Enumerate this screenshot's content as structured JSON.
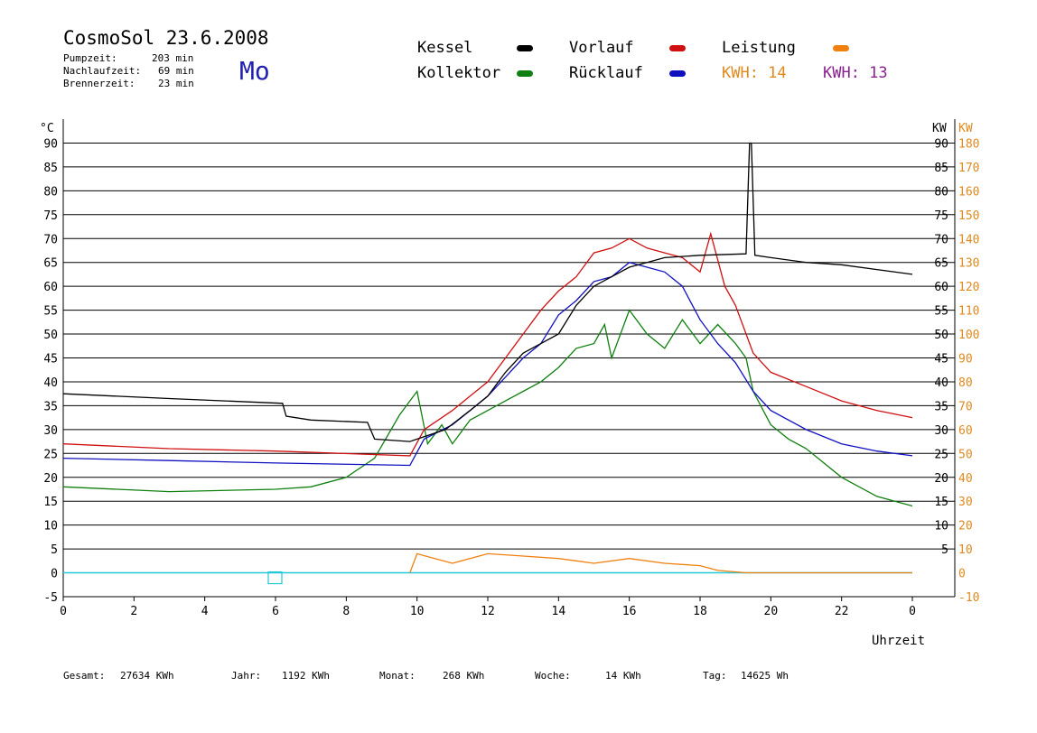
{
  "header": {
    "title": "CosmoSol 23.6.2008",
    "weekday": "Mo",
    "stats": [
      {
        "label": "Pumpzeit:",
        "value": "203 min"
      },
      {
        "label": "Nachlaufzeit:",
        "value": "69 min"
      },
      {
        "label": "Brennerzeit:",
        "value": "23 min"
      }
    ]
  },
  "legend": {
    "kessel": "Kessel",
    "vorlauf": "Vorlauf",
    "leistung": "Leistung",
    "kollektor": "Kollektor",
    "ruecklauf": "Rücklauf",
    "kwh1": "KWH: 14",
    "kwh2": "KWH: 13"
  },
  "colors": {
    "kessel": "#000000",
    "vorlauf": "#d01010",
    "ruecklauf": "#1010c0",
    "kollektor": "#108010",
    "leistung": "#f08010",
    "kwh_purple": "#8a1f8f",
    "baseline": "#20c8d8",
    "right_axis": "#e08a20"
  },
  "footer": {
    "gesamt_label": "Gesamt:",
    "gesamt_value": "27634 KWh",
    "jahr_label": "Jahr:",
    "jahr_value": "1192 KWh",
    "monat_label": "Monat:",
    "monat_value": "268 KWh",
    "woche_label": "Woche:",
    "woche_value": "14 KWh",
    "tag_label": "Tag:",
    "tag_value": "14625 Wh"
  },
  "chart_data": {
    "type": "line",
    "xlabel": "Uhrzeit",
    "ylabel_left": "°C",
    "ylabel_right": "KW",
    "xlim": [
      0,
      24
    ],
    "ylim": [
      -5,
      95
    ],
    "ylim_right": [
      -10,
      190
    ],
    "grid": true,
    "x_ticks": [
      0,
      2,
      4,
      6,
      8,
      10,
      12,
      14,
      16,
      18,
      20,
      22
    ],
    "x_tick_labels": [
      "0",
      "2",
      "4",
      "6",
      "8",
      "10",
      "12",
      "14",
      "16",
      "18",
      "20",
      "22",
      "0"
    ],
    "y_ticks_left": [
      -5,
      0,
      5,
      10,
      15,
      20,
      25,
      30,
      35,
      40,
      45,
      50,
      55,
      60,
      65,
      70,
      75,
      80,
      85,
      90
    ],
    "y_ticks_right_celsius": [
      5,
      10,
      15,
      20,
      25,
      30,
      35,
      40,
      45,
      50,
      55,
      60,
      65,
      70,
      75,
      80,
      85,
      90
    ],
    "y_ticks_right_kw": [
      -10,
      0,
      10,
      20,
      30,
      40,
      50,
      60,
      70,
      80,
      90,
      100,
      110,
      120,
      130,
      140,
      150,
      160,
      170,
      180
    ],
    "series": [
      {
        "name": "Kessel",
        "points": [
          [
            0,
            37.5
          ],
          [
            3,
            36.5
          ],
          [
            6.2,
            35.5
          ],
          [
            6.3,
            32.8
          ],
          [
            7,
            32
          ],
          [
            8.6,
            31.5
          ],
          [
            8.8,
            28
          ],
          [
            9.8,
            27.5
          ],
          [
            10.2,
            28.5
          ],
          [
            10.8,
            30
          ],
          [
            11.5,
            34
          ],
          [
            12,
            37
          ],
          [
            12.5,
            42
          ],
          [
            13,
            46
          ],
          [
            14,
            50
          ],
          [
            14.5,
            56
          ],
          [
            15,
            60
          ],
          [
            15.5,
            62
          ],
          [
            16,
            64
          ],
          [
            16.5,
            65
          ],
          [
            17,
            66
          ],
          [
            18,
            66.5
          ],
          [
            19.3,
            66.8
          ],
          [
            19.4,
            90
          ],
          [
            19.45,
            90
          ],
          [
            19.55,
            66.5
          ],
          [
            20,
            66
          ],
          [
            21,
            65
          ],
          [
            22,
            64.5
          ],
          [
            23,
            63.5
          ],
          [
            24,
            62.5
          ]
        ]
      },
      {
        "name": "Vorlauf",
        "points": [
          [
            0,
            27
          ],
          [
            3,
            26
          ],
          [
            6,
            25.5
          ],
          [
            9.8,
            24.5
          ],
          [
            10.2,
            30
          ],
          [
            11,
            34
          ],
          [
            11.5,
            37
          ],
          [
            12,
            40
          ],
          [
            12.5,
            45
          ],
          [
            13,
            50
          ],
          [
            13.5,
            55
          ],
          [
            14,
            59
          ],
          [
            14.5,
            62
          ],
          [
            15,
            67
          ],
          [
            15.5,
            68
          ],
          [
            16,
            70
          ],
          [
            16.5,
            68
          ],
          [
            17,
            67
          ],
          [
            17.5,
            66
          ],
          [
            18,
            63
          ],
          [
            18.3,
            71
          ],
          [
            18.7,
            60
          ],
          [
            19,
            56
          ],
          [
            19.5,
            46
          ],
          [
            20,
            42
          ],
          [
            21,
            39
          ],
          [
            22,
            36
          ],
          [
            23,
            34
          ],
          [
            24,
            32.5
          ]
        ]
      },
      {
        "name": "Rücklauf",
        "points": [
          [
            0,
            24
          ],
          [
            3,
            23.5
          ],
          [
            6,
            23
          ],
          [
            9.8,
            22.5
          ],
          [
            10.2,
            28
          ],
          [
            11,
            31
          ],
          [
            11.5,
            34
          ],
          [
            12,
            37
          ],
          [
            12.5,
            41
          ],
          [
            13,
            45
          ],
          [
            13.5,
            48
          ],
          [
            14,
            54
          ],
          [
            14.5,
            57
          ],
          [
            15,
            61
          ],
          [
            15.5,
            62
          ],
          [
            16,
            65
          ],
          [
            16.5,
            64
          ],
          [
            17,
            63
          ],
          [
            17.5,
            60
          ],
          [
            18,
            53
          ],
          [
            18.5,
            48
          ],
          [
            19,
            44
          ],
          [
            19.5,
            38
          ],
          [
            20,
            34
          ],
          [
            21,
            30
          ],
          [
            22,
            27
          ],
          [
            23,
            25.5
          ],
          [
            24,
            24.5
          ]
        ]
      },
      {
        "name": "Kollektor",
        "points": [
          [
            0,
            18
          ],
          [
            3,
            17
          ],
          [
            6,
            17.5
          ],
          [
            7,
            18
          ],
          [
            8,
            20
          ],
          [
            8.8,
            24
          ],
          [
            9.5,
            33
          ],
          [
            9.8,
            36
          ],
          [
            10,
            38
          ],
          [
            10.3,
            27
          ],
          [
            10.7,
            31
          ],
          [
            11,
            27
          ],
          [
            11.5,
            32
          ],
          [
            12,
            34
          ],
          [
            12.5,
            36
          ],
          [
            13,
            38
          ],
          [
            13.5,
            40
          ],
          [
            14,
            43
          ],
          [
            14.5,
            47
          ],
          [
            15,
            48
          ],
          [
            15.3,
            52
          ],
          [
            15.5,
            45
          ],
          [
            16,
            55
          ],
          [
            16.5,
            50
          ],
          [
            17,
            47
          ],
          [
            17.5,
            53
          ],
          [
            18,
            48
          ],
          [
            18.5,
            52
          ],
          [
            19,
            48
          ],
          [
            19.3,
            45
          ],
          [
            19.5,
            38
          ],
          [
            20,
            31
          ],
          [
            20.5,
            28
          ],
          [
            21,
            26
          ],
          [
            22,
            20
          ],
          [
            23,
            16
          ],
          [
            24,
            14
          ]
        ]
      },
      {
        "name": "Leistung",
        "points": [
          [
            9.8,
            0
          ],
          [
            10,
            4
          ],
          [
            10.5,
            3
          ],
          [
            11,
            2
          ],
          [
            12,
            4
          ],
          [
            13,
            3.5
          ],
          [
            14,
            3
          ],
          [
            15,
            2
          ],
          [
            16,
            3
          ],
          [
            17,
            2
          ],
          [
            18,
            1.5
          ],
          [
            18.5,
            0.5
          ],
          [
            19.3,
            0
          ],
          [
            24,
            0
          ]
        ]
      }
    ]
  }
}
